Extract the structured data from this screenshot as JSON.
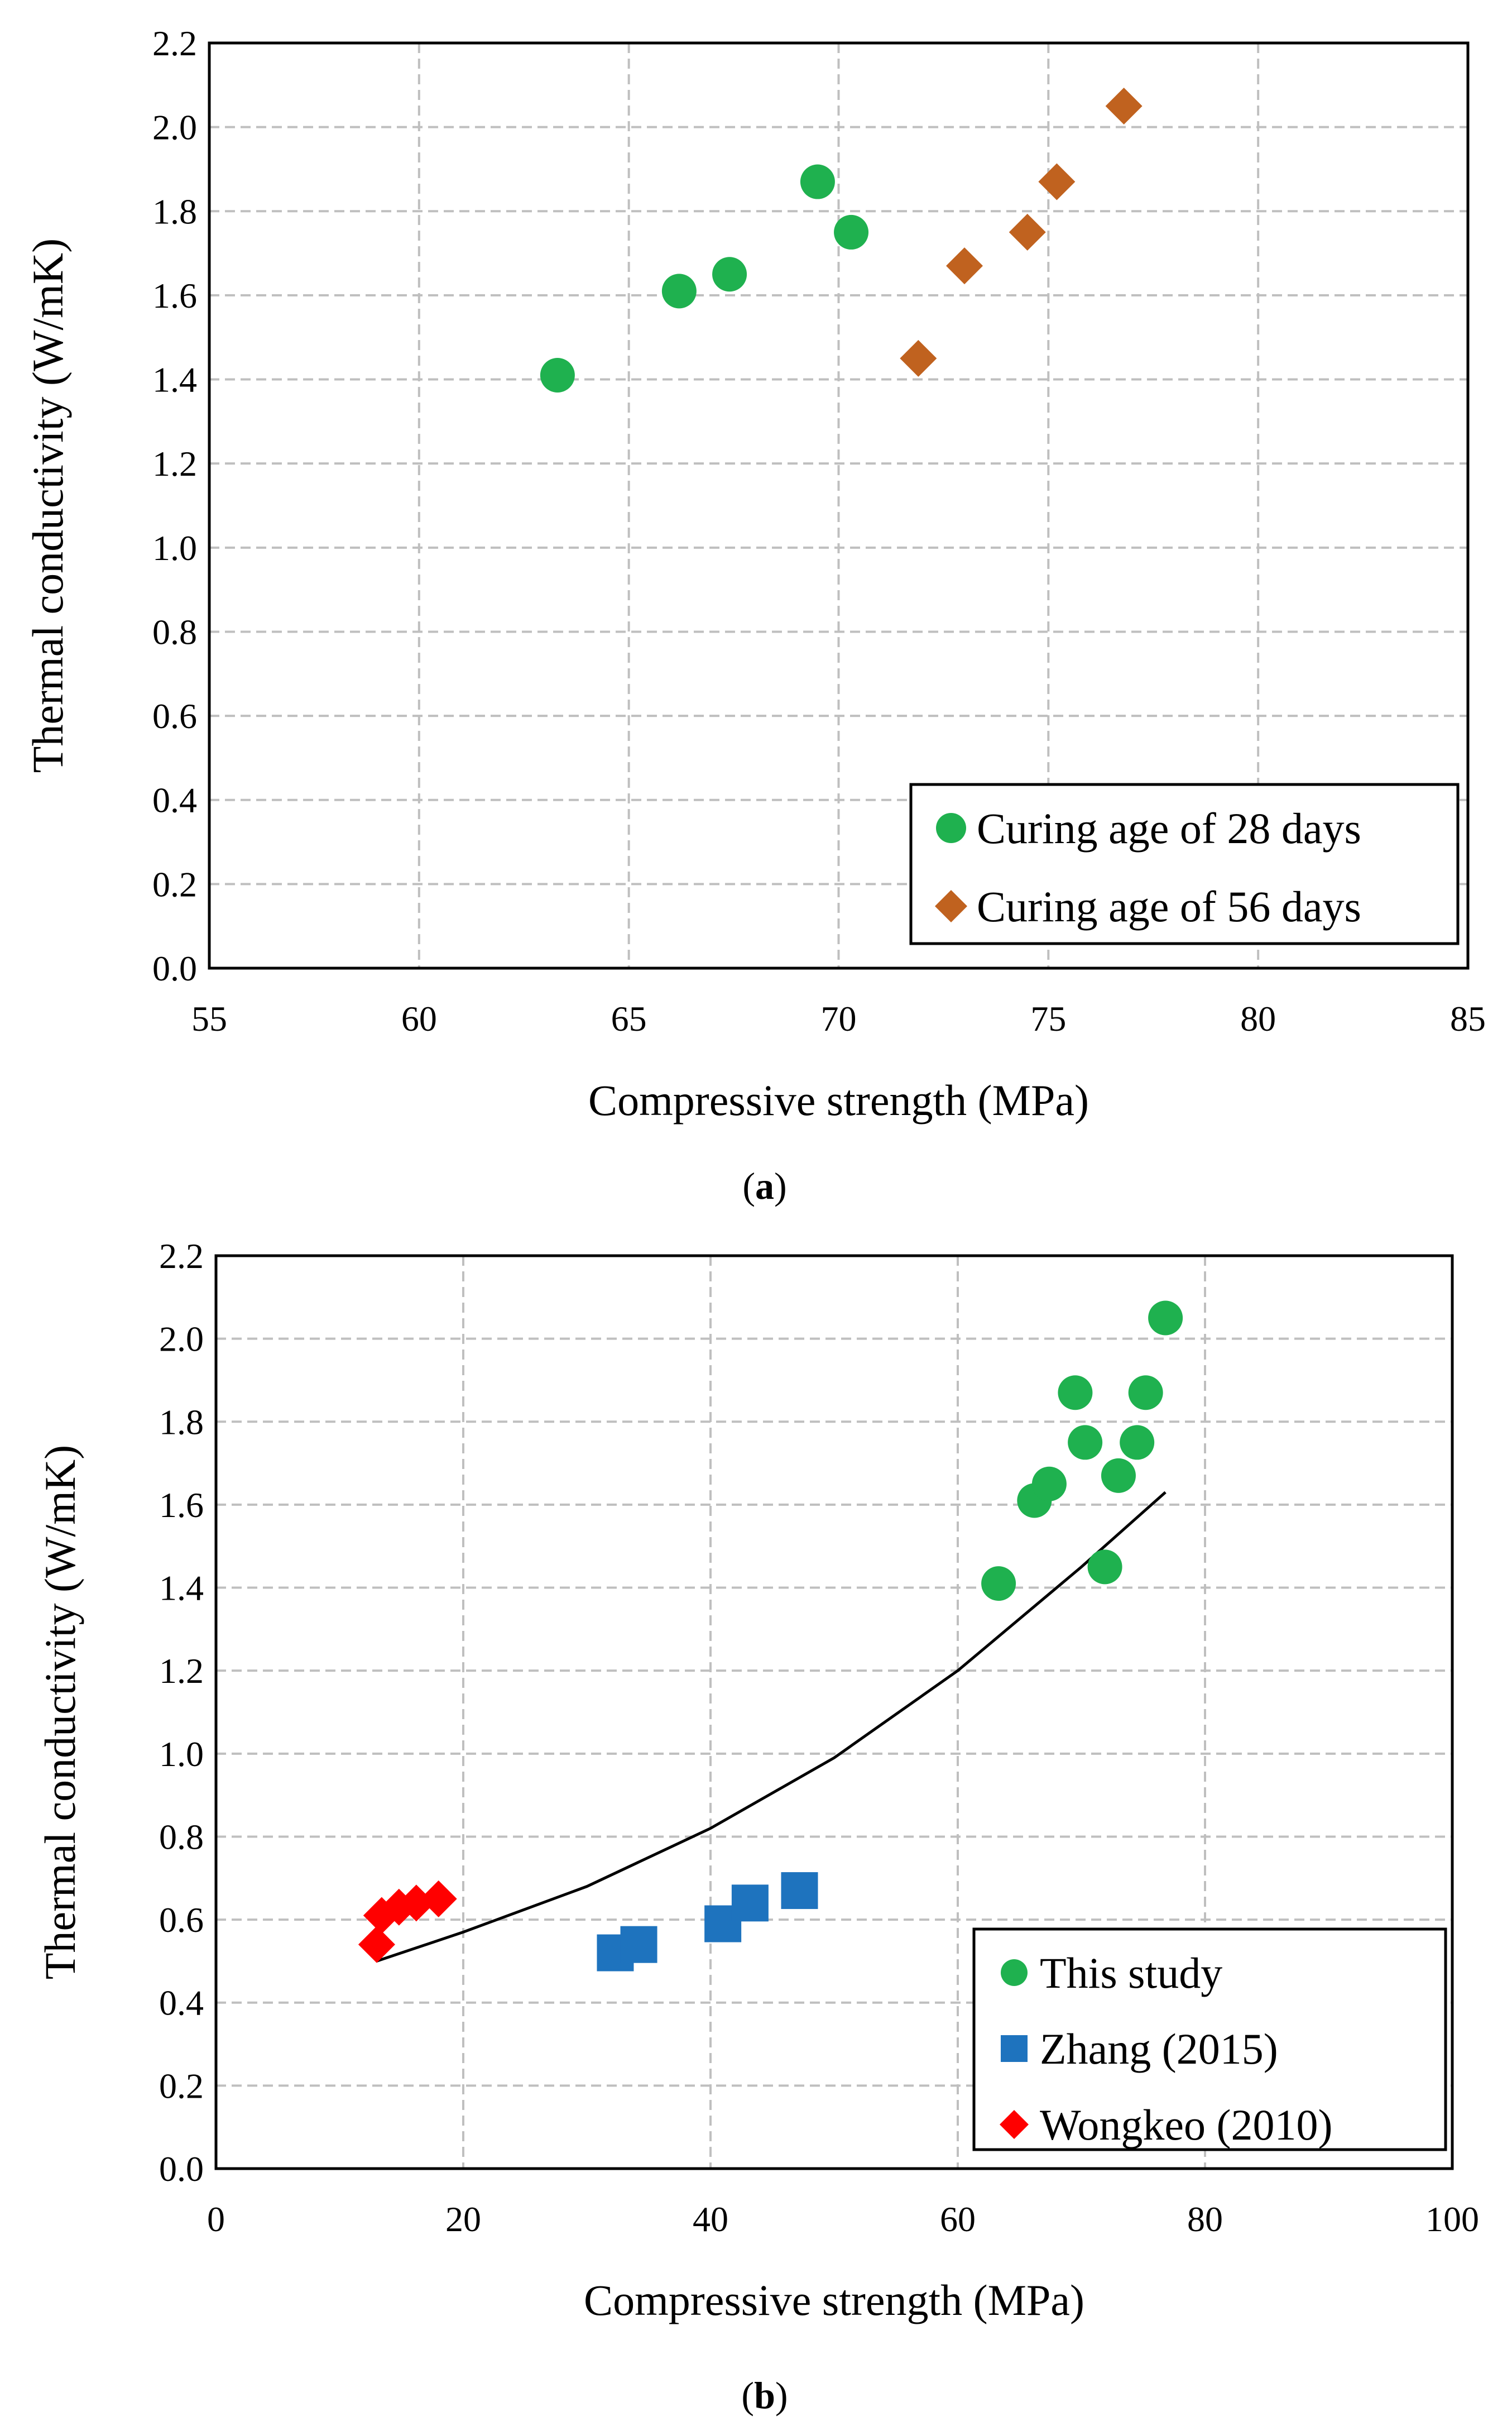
{
  "chart_data": [
    {
      "id": "a",
      "type": "scatter",
      "caption": "(a)",
      "xlabel": "Compressive strength (MPa)",
      "ylabel": "Thermal conductivity (W/mK)",
      "xlim": [
        55,
        85
      ],
      "ylim": [
        0.0,
        2.2
      ],
      "xticks": [
        55,
        60,
        65,
        70,
        75,
        80,
        85
      ],
      "yticks": [
        0.0,
        0.2,
        0.4,
        0.6,
        0.8,
        1.0,
        1.2,
        1.4,
        1.6,
        1.8,
        2.0,
        2.2
      ],
      "grid": true,
      "legend": "bottom-right",
      "series": [
        {
          "name": "Curing age of 28 days",
          "marker": "circle",
          "color": "#1fb14f",
          "points": [
            [
              63.3,
              1.41
            ],
            [
              66.2,
              1.61
            ],
            [
              67.4,
              1.65
            ],
            [
              69.5,
              1.87
            ],
            [
              70.3,
              1.75
            ]
          ]
        },
        {
          "name": "Curing age of 56 days",
          "marker": "diamond",
          "color": "#c0621f",
          "points": [
            [
              71.9,
              1.45
            ],
            [
              73.0,
              1.67
            ],
            [
              74.5,
              1.75
            ],
            [
              75.2,
              1.87
            ],
            [
              76.8,
              2.05
            ]
          ]
        }
      ]
    },
    {
      "id": "b",
      "type": "scatter",
      "caption": "(b)",
      "xlabel": "Compressive strength (MPa)",
      "ylabel": "Thermal conductivity (W/mK)",
      "xlim": [
        0,
        100
      ],
      "ylim": [
        0.0,
        2.2
      ],
      "xticks": [
        0,
        20,
        40,
        60,
        80,
        100
      ],
      "yticks": [
        0.0,
        0.2,
        0.4,
        0.6,
        0.8,
        1.0,
        1.2,
        1.4,
        1.6,
        1.8,
        2.0,
        2.2
      ],
      "grid": true,
      "legend": "bottom-right",
      "series": [
        {
          "name": "This study",
          "marker": "circle",
          "color": "#1fb14f",
          "points": [
            [
              63.3,
              1.41
            ],
            [
              66.2,
              1.61
            ],
            [
              67.4,
              1.65
            ],
            [
              69.5,
              1.87
            ],
            [
              70.3,
              1.75
            ],
            [
              71.9,
              1.45
            ],
            [
              73.0,
              1.67
            ],
            [
              74.5,
              1.75
            ],
            [
              75.2,
              1.87
            ],
            [
              76.8,
              2.05
            ]
          ]
        },
        {
          "name": "Zhang (2015)",
          "marker": "square",
          "color": "#1e73be",
          "points": [
            [
              32.3,
              0.52
            ],
            [
              34.2,
              0.54
            ],
            [
              41.0,
              0.59
            ],
            [
              43.2,
              0.64
            ],
            [
              47.2,
              0.67
            ]
          ]
        },
        {
          "name": "Wongkeo (2010)",
          "marker": "diamond",
          "color": "#ff0000",
          "points": [
            [
              13.0,
              0.54
            ],
            [
              13.4,
              0.61
            ],
            [
              14.8,
              0.63
            ],
            [
              16.2,
              0.64
            ],
            [
              18.0,
              0.65
            ]
          ]
        }
      ],
      "trendline": {
        "color": "#000000",
        "points": [
          [
            13,
            0.5
          ],
          [
            20,
            0.57
          ],
          [
            30,
            0.68
          ],
          [
            40,
            0.82
          ],
          [
            50,
            0.99
          ],
          [
            60,
            1.2
          ],
          [
            70,
            1.45
          ],
          [
            76.8,
            1.63
          ]
        ]
      }
    }
  ]
}
